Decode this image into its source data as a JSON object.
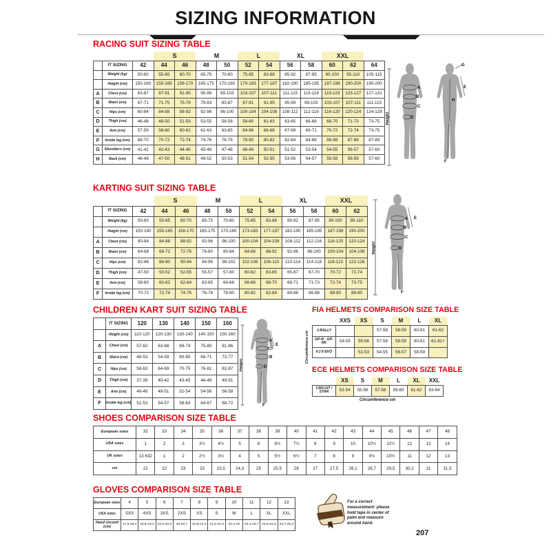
{
  "page": {
    "title": "SIZING INFORMATION",
    "page_number": "207"
  },
  "colors": {
    "accent_red": "#e30613",
    "highlight_yellow": "#f8f0bd"
  },
  "figures": {
    "height_label": "Height",
    "racing_front": [
      "A",
      "B",
      "C",
      "D"
    ],
    "racing_back": [
      "G",
      "H",
      "E",
      "F"
    ],
    "karting": [
      "A",
      "B",
      "C",
      "D",
      "E",
      "F"
    ],
    "children": [
      "A",
      "C",
      "B",
      "D",
      "E",
      "F"
    ]
  },
  "tables": {
    "racing": {
      "title": "RACING SUIT SIZING TABLE",
      "groups": [
        {
          "label": "S",
          "span": 2,
          "hl": true
        },
        {
          "label": "M",
          "span": 2,
          "hl": false
        },
        {
          "label": "L",
          "span": 2,
          "hl": true
        },
        {
          "label": "XL",
          "span": 2,
          "hl": false
        },
        {
          "label": "XXL",
          "span": 2,
          "hl": true
        }
      ],
      "header": {
        "label": "IT SIZING",
        "sizes": [
          "42",
          "44",
          "46",
          "48",
          "50",
          "52",
          "54",
          "56",
          "58",
          "60",
          "62",
          "64"
        ]
      },
      "hl": [
        1,
        2,
        5,
        6,
        9,
        10
      ],
      "rows": [
        {
          "letter": "",
          "label": "Weight (kg)",
          "values": [
            "50-60",
            "55-65",
            "60-70",
            "65-75",
            "70-80",
            "75-85",
            "83-88",
            "85-92",
            "87-95",
            "90-100",
            "95-110",
            "105-115"
          ]
        },
        {
          "letter": "",
          "label": "Height (cm)",
          "values": [
            "150-160",
            "155-165",
            "158-170",
            "165-175",
            "170-180",
            "170-183",
            "177-187",
            "182-190",
            "185-195",
            "187-198",
            "190-200",
            "190-200"
          ]
        },
        {
          "letter": "A",
          "label": "Chest (cm)",
          "values": [
            "83-87",
            "87-91",
            "91-95",
            "95-99",
            "99-103",
            "103-107",
            "107-111",
            "111-115",
            "115-119",
            "119-123",
            "123-127",
            "127-131"
          ]
        },
        {
          "letter": "B",
          "label": "Waist (cm)",
          "values": [
            "67-71",
            "71-75",
            "75-79",
            "79-83",
            "83-87",
            "87-91",
            "91-95",
            "95-99",
            "99-103",
            "103-107",
            "107-111",
            "111-115"
          ]
        },
        {
          "letter": "C",
          "label": "Hips (cm)",
          "values": [
            "80-84",
            "84-88",
            "88-92",
            "92-96",
            "96-100",
            "100-104",
            "104-108",
            "108-112",
            "112-116",
            "116-120",
            "120-124",
            "124-128"
          ]
        },
        {
          "letter": "D",
          "label": "Thigh (cm)",
          "values": [
            "46-48",
            "48-50",
            "51-53",
            "53-55",
            "56-58",
            "58-60",
            "61-63",
            "63-65",
            "66-68",
            "68-70",
            "71-73",
            "73-75"
          ]
        },
        {
          "letter": "E",
          "label": "Arm (cm)",
          "values": [
            "57-59",
            "58-60",
            "60-62",
            "61-63",
            "63-65",
            "64-66",
            "66-68",
            "67-69",
            "69-71",
            "70-72",
            "72-74",
            "73-75"
          ]
        },
        {
          "letter": "F",
          "label": "Inside leg (cm)",
          "values": [
            "68-70",
            "70-72",
            "72-74",
            "74-76",
            "76-78",
            "78-80",
            "80-82",
            "82-84",
            "84-86",
            "86-88",
            "87-89",
            "87-89"
          ]
        },
        {
          "letter": "G",
          "label": "Shoulders (cm)",
          "values": [
            "41-42",
            "42-43",
            "44-45",
            "45-46",
            "47-48",
            "48-49",
            "50-51",
            "51-52",
            "53-54",
            "54-55",
            "56-57",
            "57-60"
          ]
        },
        {
          "letter": "H",
          "label": "Back (cm)",
          "values": [
            "46-49",
            "47-50",
            "48-51",
            "49-52",
            "50-53",
            "51-54",
            "52-55",
            "53-56",
            "54-57",
            "55-58",
            "56-59",
            "57-60"
          ]
        }
      ]
    },
    "karting": {
      "title": "KARTING SUIT SIZING TABLE",
      "groups": [
        {
          "label": "S",
          "span": 2,
          "hl": true
        },
        {
          "label": "M",
          "span": 2,
          "hl": false
        },
        {
          "label": "L",
          "span": 2,
          "hl": true
        },
        {
          "label": "XL",
          "span": 2,
          "hl": false
        },
        {
          "label": "XXL",
          "span": 2,
          "hl": true
        }
      ],
      "header": {
        "label": "IT SIZING",
        "sizes": [
          "42",
          "44",
          "46",
          "48",
          "50",
          "52",
          "54",
          "56",
          "58",
          "60",
          "62"
        ]
      },
      "hl": [
        1,
        2,
        5,
        6,
        9,
        10
      ],
      "rows": [
        {
          "letter": "",
          "label": "Weight (kg)",
          "values": [
            "50-60",
            "55-65",
            "60-70",
            "65-75",
            "70-80",
            "75-85",
            "83-88",
            "85-92",
            "87-95",
            "90-100",
            "95-110"
          ]
        },
        {
          "letter": "",
          "label": "Height (cm)",
          "values": [
            "150-160",
            "155-165",
            "158-170",
            "165-175",
            "170-180",
            "173-183",
            "177-187",
            "182-190",
            "185-195",
            "187-198",
            "190-200"
          ]
        },
        {
          "letter": "A",
          "label": "Chest (cm)",
          "values": [
            "80-84",
            "84-88",
            "88-92",
            "92-96",
            "96-100",
            "100-104",
            "104-108",
            "108-112",
            "112-116",
            "116-120",
            "120-124"
          ]
        },
        {
          "letter": "B",
          "label": "Waist (cm)",
          "values": [
            "64-68",
            "68-72",
            "72-76",
            "76-80",
            "80-84",
            "84-88",
            "88-92",
            "92-96",
            "96-100",
            "100-104",
            "104-108"
          ]
        },
        {
          "letter": "C",
          "label": "Hips (cm)",
          "values": [
            "82-86",
            "86-90",
            "90-94",
            "94-98",
            "98-102",
            "102-106",
            "106-110",
            "110-114",
            "114-118",
            "118-122",
            "122-126"
          ]
        },
        {
          "letter": "D",
          "label": "Thigh (cm)",
          "values": [
            "47-50",
            "50-52",
            "52-55",
            "55-57",
            "57-60",
            "60-62",
            "63-65",
            "65-67",
            "67-70",
            "70-72",
            "72-74"
          ]
        },
        {
          "letter": "E",
          "label": "Arm (cm)",
          "values": [
            "58-60",
            "60-62",
            "62-64",
            "63-65",
            "64-66",
            "66-68",
            "68-70",
            "69-71",
            "71-73",
            "72-74",
            "73-75"
          ]
        },
        {
          "letter": "F",
          "label": "Inside leg (cm)",
          "values": [
            "70-72",
            "72-74",
            "74-76",
            "76-78",
            "78-80",
            "80-82",
            "82-84",
            "84-86",
            "86-88",
            "88-90",
            "88-90"
          ]
        }
      ]
    },
    "children": {
      "title": "CHILDREN KART SUIT SIZING TABLE",
      "header": {
        "label": "IT SIZING",
        "sizes": [
          "120",
          "130",
          "140",
          "150",
          "160"
        ]
      },
      "hl": [],
      "rows": [
        {
          "letter": "",
          "label": "Height (cm)",
          "values": [
            "110-120",
            "120-130",
            "130-140",
            "140-150",
            "150-160"
          ]
        },
        {
          "letter": "A",
          "label": "Chest (cm)",
          "values": [
            "57-62",
            "63-68",
            "69-74",
            "75-80",
            "81-86"
          ]
        },
        {
          "letter": "B",
          "label": "Waist (cm)",
          "values": [
            "48-53",
            "54-59",
            "60-65",
            "66-71",
            "72-77"
          ]
        },
        {
          "letter": "C",
          "label": "Hips (cm)",
          "values": [
            "58-63",
            "64-69",
            "70-75",
            "76-81",
            "82-87"
          ]
        },
        {
          "letter": "D",
          "label": "Thigh (cm)",
          "values": [
            "37-39",
            "40-42",
            "43-45",
            "46-48",
            "49-51"
          ]
        },
        {
          "letter": "E",
          "label": "Arm (cm)",
          "values": [
            "46-48",
            "49-51",
            "52-54",
            "54-56",
            "56-58"
          ]
        },
        {
          "letter": "F",
          "label": "Inside leg (cm)",
          "values": [
            "51-53",
            "54-57",
            "58-63",
            "64-67",
            "68-72"
          ]
        }
      ]
    },
    "fia": {
      "title": "FIA HELMETS COMPARISON SIZE TABLE",
      "side_label": "Circumference cm",
      "columns": [
        "XXS",
        "XS",
        "S",
        "M",
        "L",
        "XL"
      ],
      "hl": [
        1,
        3,
        5
      ],
      "rows": [
        {
          "label": "J-RALLY",
          "values": [
            "",
            "",
            "57-58",
            "58-59",
            "60-61",
            "61-62"
          ]
        },
        {
          "label": "GP-R - GP-RK",
          "values": [
            "54-55",
            "55-56",
            "57-58",
            "58-59",
            "60-61",
            "61-61+"
          ]
        },
        {
          "label": "KJ 8 EVO",
          "values": [
            "",
            "52-53",
            "54-55",
            "56-57",
            "58-59",
            ""
          ]
        }
      ]
    },
    "ece": {
      "title": "ECE HELMETS COMPARISON SIZE TABLE",
      "caption": "Circumference cm",
      "columns": [
        "XS",
        "S",
        "M",
        "L",
        "XL",
        "XXL"
      ],
      "hl": [
        0,
        2,
        4
      ],
      "rows": [
        {
          "label": "CIRCUIT / STAR",
          "values": [
            "53-54",
            "55-56",
            "57-58",
            "59-60",
            "61-62",
            "63-64"
          ]
        }
      ]
    },
    "shoes": {
      "title": "SHOES COMPARISON SIZE TABLE",
      "hl": [],
      "rows": [
        {
          "label": "European sizes",
          "values": [
            "32",
            "33",
            "34",
            "35",
            "36",
            "37",
            "38",
            "39",
            "40",
            "41",
            "42",
            "43",
            "44",
            "45",
            "46",
            "47",
            "48"
          ]
        },
        {
          "label": "USA sizes",
          "values": [
            "1",
            "2",
            "3",
            "3½",
            "4½",
            "5",
            "6",
            "6½",
            "7½",
            "8",
            "9",
            "10",
            "10½",
            "11½",
            "12",
            "13",
            "14"
          ]
        },
        {
          "label": "UK sizes",
          "values": [
            "13 KID",
            "1",
            "2",
            "2½",
            "3½",
            "4",
            "5",
            "5½",
            "6½",
            "7",
            "8",
            "9",
            "9½",
            "10½",
            "11",
            "12",
            "13"
          ]
        },
        {
          "label": "cm",
          "values": [
            "21",
            "22",
            "23",
            "23",
            "23,5",
            "24,3",
            "25",
            "25,5",
            "26",
            "27",
            "27,5",
            "28,1",
            "28,7",
            "29,5",
            "30,2",
            "31",
            "31,5"
          ]
        }
      ]
    },
    "gloves": {
      "title": "GLOVES COMPARISON SIZE TABLE",
      "note": "For a correct measurement: please hold tape in center of palm and measure around hand.",
      "hl": [],
      "rows": [
        {
          "label": "European sizes",
          "values": [
            "4",
            "5",
            "6",
            "7",
            "8",
            "9",
            "10",
            "11",
            "12",
            "13"
          ]
        },
        {
          "label": "USA sizes",
          "values": [
            "5XS",
            "4XS",
            "3XS",
            "2XS",
            "XS",
            "S",
            "M",
            "L",
            "XL",
            "XXL"
          ]
        },
        {
          "label": "Hand circumf (cm)",
          "values": [
            "17,5-18,4",
            "18,5-19,2",
            "19,3-19,9",
            "20-20,7",
            "20,8-21,5",
            "21,6-22,3",
            "22,4-23",
            "23,1-23,7",
            "23,8-24,6",
            "24,7-25,4"
          ]
        }
      ]
    }
  }
}
